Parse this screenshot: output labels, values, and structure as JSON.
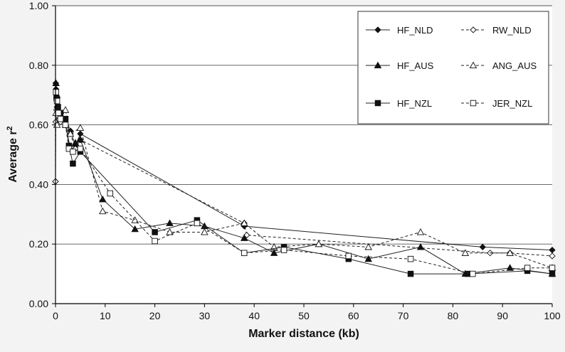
{
  "chart_data": {
    "type": "line",
    "title": "",
    "xlabel": "Marker distance (kb)",
    "ylabel": "Average r",
    "ylabel_superscript": "2",
    "xlim": [
      0,
      100
    ],
    "ylim": [
      0,
      1.0
    ],
    "xticks": [
      "0",
      "10",
      "20",
      "30",
      "40",
      "50",
      "60",
      "70",
      "80",
      "90",
      "100"
    ],
    "yticks": [
      "0.00",
      "0.20",
      "0.40",
      "0.60",
      "0.80",
      "1.00"
    ],
    "grid": "horizontal",
    "legend_position": "top-right",
    "series": [
      {
        "name": "HF_NLD",
        "line": "solid",
        "marker": "diamond",
        "fill": "filled",
        "points": [
          [
            0,
            0.41
          ],
          [
            0.05,
            0.74
          ],
          [
            0.1,
            0.72
          ],
          [
            0.2,
            0.69
          ],
          [
            0.3,
            0.66
          ],
          [
            0.5,
            0.64
          ],
          [
            1,
            0.62
          ],
          [
            2,
            0.6
          ],
          [
            3,
            0.58
          ],
          [
            4,
            0.53
          ],
          [
            5,
            0.57
          ],
          [
            38,
            0.26
          ],
          [
            86,
            0.19
          ],
          [
            100,
            0.18
          ]
        ]
      },
      {
        "name": "RW_NLD",
        "line": "dashed",
        "marker": "diamond",
        "fill": "open",
        "points": [
          [
            0,
            0.41
          ],
          [
            0.05,
            0.61
          ],
          [
            0.2,
            0.65
          ],
          [
            0.5,
            0.63
          ],
          [
            1,
            0.61
          ],
          [
            2,
            0.6
          ],
          [
            3,
            0.57
          ],
          [
            4,
            0.52
          ],
          [
            5,
            0.55
          ],
          [
            38,
            0.27
          ],
          [
            38.5,
            0.23
          ],
          [
            87.5,
            0.17
          ],
          [
            91.5,
            0.17
          ],
          [
            100,
            0.16
          ]
        ]
      },
      {
        "name": "HF_AUS",
        "line": "solid",
        "marker": "triangle",
        "fill": "filled",
        "points": [
          [
            0.1,
            0.74
          ],
          [
            0.3,
            0.7
          ],
          [
            1,
            0.63
          ],
          [
            2,
            0.6
          ],
          [
            3,
            0.52
          ],
          [
            4,
            0.54
          ],
          [
            5,
            0.55
          ],
          [
            9.5,
            0.35
          ],
          [
            16,
            0.25
          ],
          [
            23,
            0.27
          ],
          [
            30,
            0.26
          ],
          [
            38,
            0.22
          ],
          [
            44,
            0.17
          ],
          [
            53,
            0.2
          ],
          [
            63,
            0.15
          ],
          [
            73.5,
            0.19
          ],
          [
            82.5,
            0.1
          ],
          [
            91.5,
            0.12
          ],
          [
            100,
            0.1
          ]
        ]
      },
      {
        "name": "ANG_AUS",
        "line": "dashed",
        "marker": "triangle",
        "fill": "open",
        "points": [
          [
            0.1,
            0.64
          ],
          [
            0.3,
            0.6
          ],
          [
            1,
            0.62
          ],
          [
            2,
            0.65
          ],
          [
            3,
            0.57
          ],
          [
            5,
            0.59
          ],
          [
            9.5,
            0.31
          ],
          [
            16,
            0.28
          ],
          [
            23,
            0.24
          ],
          [
            30,
            0.24
          ],
          [
            38,
            0.27
          ],
          [
            44,
            0.19
          ],
          [
            53,
            0.2
          ],
          [
            63,
            0.19
          ],
          [
            73.5,
            0.24
          ],
          [
            82.5,
            0.17
          ],
          [
            91.5,
            0.17
          ],
          [
            100,
            0.12
          ]
        ]
      },
      {
        "name": "HF_NZL",
        "line": "solid",
        "marker": "square",
        "fill": "filled",
        "points": [
          [
            0.2,
            0.69
          ],
          [
            0.5,
            0.66
          ],
          [
            1,
            0.64
          ],
          [
            2,
            0.62
          ],
          [
            2.7,
            0.53
          ],
          [
            3.5,
            0.47
          ],
          [
            5,
            0.51
          ],
          [
            20,
            0.24
          ],
          [
            28.5,
            0.28
          ],
          [
            38,
            0.17
          ],
          [
            46,
            0.19
          ],
          [
            59,
            0.15
          ],
          [
            71.5,
            0.1
          ],
          [
            83,
            0.1
          ],
          [
            95,
            0.11
          ],
          [
            100,
            0.1
          ]
        ]
      },
      {
        "name": "JER_NZL",
        "line": "dashed",
        "marker": "square",
        "fill": "open",
        "points": [
          [
            0.1,
            0.71
          ],
          [
            0.3,
            0.68
          ],
          [
            0.6,
            0.64
          ],
          [
            1,
            0.62
          ],
          [
            2,
            0.6
          ],
          [
            2.7,
            0.52
          ],
          [
            3.5,
            0.51
          ],
          [
            5,
            0.52
          ],
          [
            11,
            0.37
          ],
          [
            20,
            0.21
          ],
          [
            28.5,
            0.27
          ],
          [
            38,
            0.17
          ],
          [
            46,
            0.18
          ],
          [
            59,
            0.16
          ],
          [
            71.5,
            0.15
          ],
          [
            84,
            0.1
          ],
          [
            95,
            0.12
          ],
          [
            100,
            0.12
          ]
        ]
      }
    ]
  }
}
